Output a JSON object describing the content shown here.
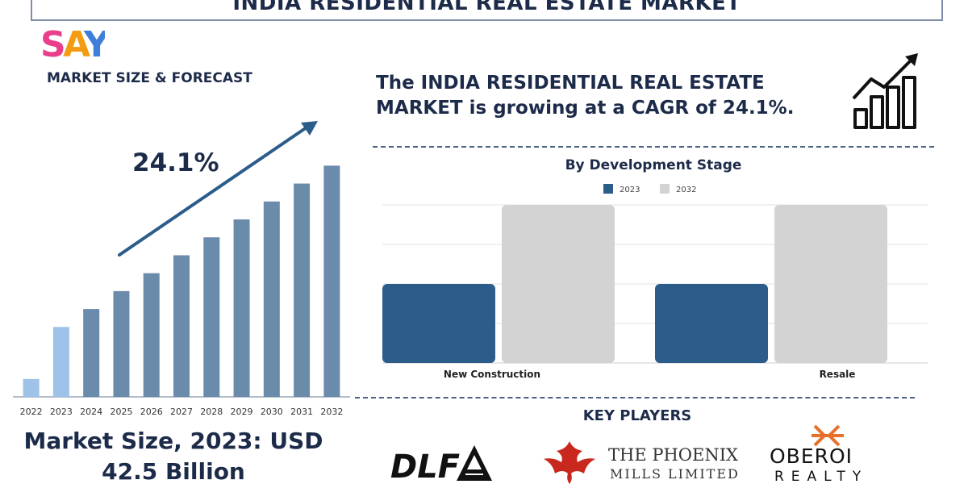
{
  "title": "INDIA RESIDENTIAL REAL ESTATE MARKET",
  "brand_logo_text": "SAY",
  "left_panel": {
    "heading": "MARKET SIZE & FORECAST",
    "cagr_callout": "24.1%",
    "market_size_line1": "Market Size, 2023: USD",
    "market_size_line2": "42.5 Billion"
  },
  "headline": {
    "line1": "The INDIA RESIDENTIAL REAL ESTATE",
    "line2": "MARKET is growing at a CAGR of 24.1%."
  },
  "segment_section": {
    "title": "By Development Stage"
  },
  "key_players": {
    "heading": "KEY PLAYERS",
    "logos": [
      "DLF",
      "THE PHOENIX MILLS LIMITED",
      "OBEROI REALTY"
    ]
  },
  "icons": [
    "growth-chart-icon",
    "trend-arrow-icon"
  ],
  "colors": {
    "navy": "#1d2b4a",
    "bar_dark": "#2b5c8a",
    "bar_light": "#d3d3d3",
    "forecast_bar": "#6b8bab",
    "highlight_bar": "#9fc2e8",
    "phoenix_red": "#c8281e",
    "oberoi_orange": "#e8702a"
  },
  "chart_data": [
    {
      "type": "bar",
      "categories": [
        "2022",
        "2023",
        "2024",
        "2025",
        "2026",
        "2027",
        "2028",
        "2029",
        "2030",
        "2031",
        "2032"
      ],
      "values": [
        1.0,
        3.9,
        4.9,
        5.9,
        6.9,
        7.9,
        8.9,
        9.9,
        10.9,
        11.9,
        12.9
      ],
      "highlight": [
        "2022",
        "2023"
      ],
      "title": "MARKET SIZE & FORECAST",
      "xlabel": "",
      "ylabel": "",
      "ylim": [
        0,
        13.5
      ],
      "grid": false,
      "annotation": "24.1%"
    },
    {
      "type": "bar",
      "title": "By Development Stage",
      "categories": [
        "New Construction",
        "Resale"
      ],
      "series": [
        {
          "name": "2023",
          "values": [
            2.0,
            2.0
          ],
          "color": "#2b5c8a"
        },
        {
          "name": "2032",
          "values": [
            4.0,
            4.0
          ],
          "color": "#d3d3d3"
        }
      ],
      "ylim": [
        0,
        4.0
      ],
      "grid": true,
      "legend": "top-center",
      "xlabel": "",
      "ylabel": ""
    }
  ]
}
